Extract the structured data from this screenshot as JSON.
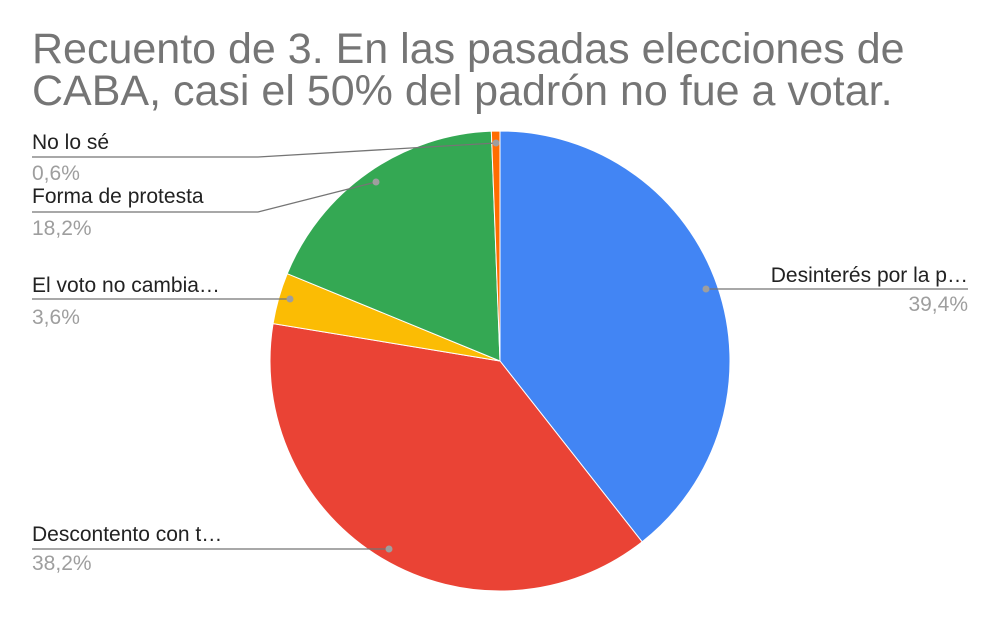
{
  "chart_data": {
    "type": "pie",
    "title_lines": [
      "Recuento de 3. En las pasadas elecciones de",
      "CABA, casi el 50% del padrón no fue a votar."
    ],
    "slices": [
      {
        "label": "Desinterés por la p…",
        "value": 39.4,
        "display": "39,4%",
        "color": "#4285f4"
      },
      {
        "label": "Descontento con t…",
        "value": 38.2,
        "display": "38,2%",
        "color": "#ea4335"
      },
      {
        "label": "El voto no cambia…",
        "value": 3.6,
        "display": "3,6%",
        "color": "#fbbc04"
      },
      {
        "label": "Forma de protesta",
        "value": 18.2,
        "display": "18,2%",
        "color": "#34a853"
      },
      {
        "label": "No lo sé",
        "value": 0.6,
        "display": "0,6%",
        "color": "#ff6d01"
      }
    ],
    "start_angle": "top",
    "direction": "clockwise",
    "legend": "none"
  }
}
